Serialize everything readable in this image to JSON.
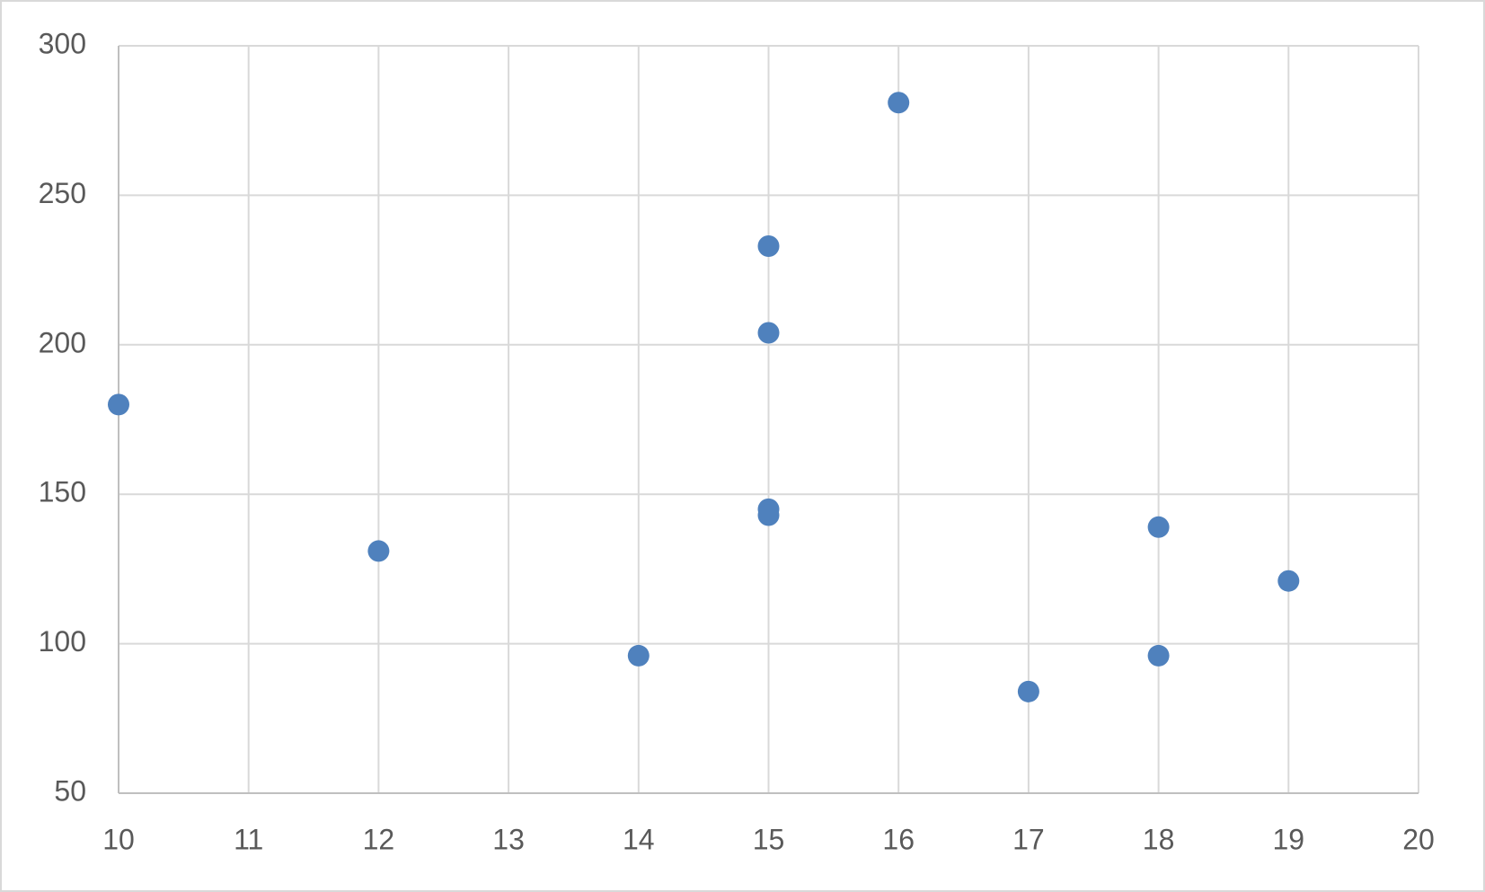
{
  "chart_data": {
    "type": "scatter",
    "series": [
      {
        "color": "#4f81bd",
        "x": [
          10,
          12,
          14,
          15,
          15,
          15,
          15,
          16,
          17,
          18,
          18,
          19
        ],
        "values": [
          180,
          131,
          96,
          233,
          204,
          145,
          143,
          281,
          84,
          139,
          96,
          121
        ]
      }
    ],
    "xlim": [
      10,
      20
    ],
    "xticks": [
      10,
      11,
      12,
      13,
      14,
      15,
      16,
      17,
      18,
      19,
      20
    ],
    "ylim": [
      50,
      300
    ],
    "yticks": [
      50,
      100,
      150,
      200,
      250,
      300
    ],
    "grid": true
  }
}
